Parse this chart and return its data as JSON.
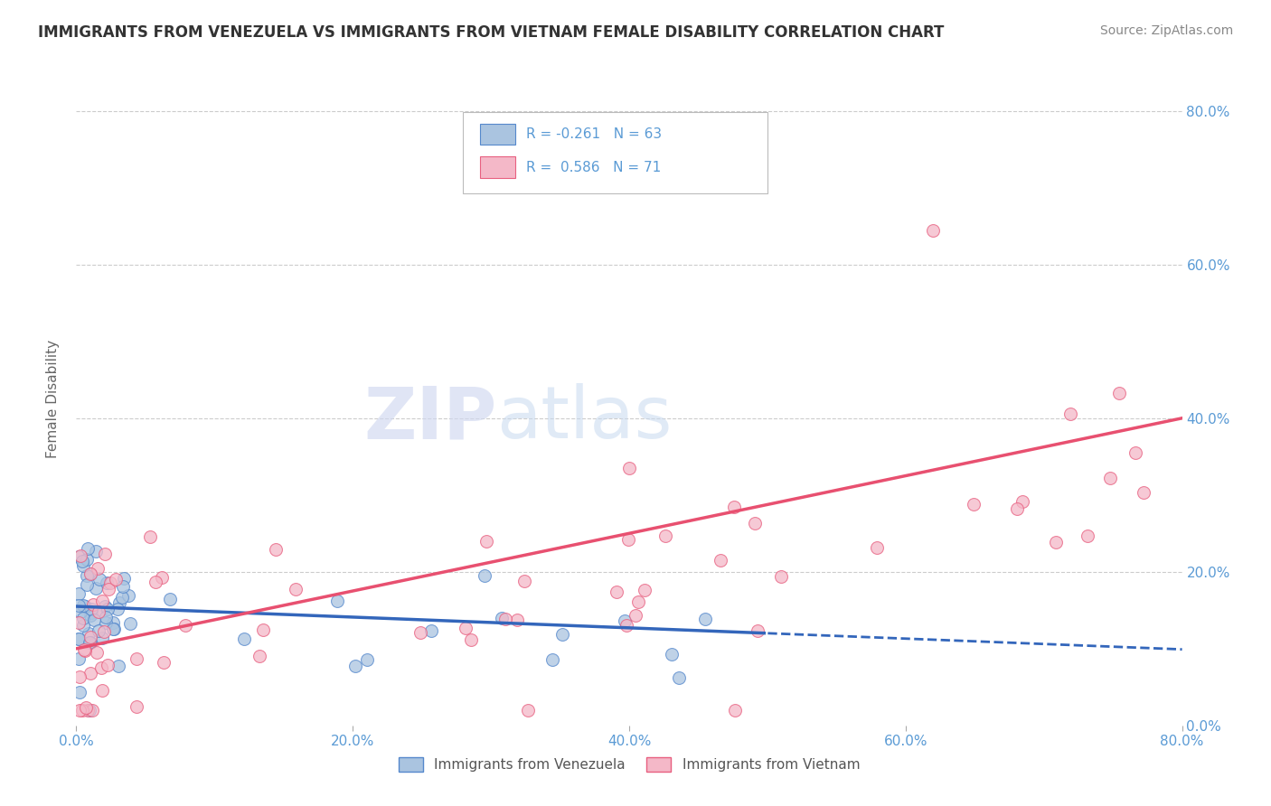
{
  "title": "IMMIGRANTS FROM VENEZUELA VS IMMIGRANTS FROM VIETNAM FEMALE DISABILITY CORRELATION CHART",
  "source": "Source: ZipAtlas.com",
  "ylabel": "Female Disability",
  "legend_label_blue": "Immigrants from Venezuela",
  "legend_label_pink": "Immigrants from Vietnam",
  "r_blue": -0.261,
  "n_blue": 63,
  "r_pink": 0.586,
  "n_pink": 71,
  "color_blue_fill": "#aac4e0",
  "color_pink_fill": "#f4b8c8",
  "color_blue_edge": "#5588cc",
  "color_pink_edge": "#e86080",
  "color_blue_line": "#3366bb",
  "color_pink_line": "#e85070",
  "color_label": "#5b9bd5",
  "color_grid": "#cccccc",
  "background": "#ffffff",
  "watermark_zip": "ZIP",
  "watermark_atlas": "atlas",
  "xlim": [
    0.0,
    0.8
  ],
  "ylim": [
    0.0,
    0.85
  ],
  "yticks": [
    0.0,
    0.2,
    0.4,
    0.6,
    0.8
  ],
  "xticks": [
    0.0,
    0.2,
    0.4,
    0.6,
    0.8
  ],
  "title_fontsize": 12,
  "tick_fontsize": 11,
  "source_fontsize": 10
}
